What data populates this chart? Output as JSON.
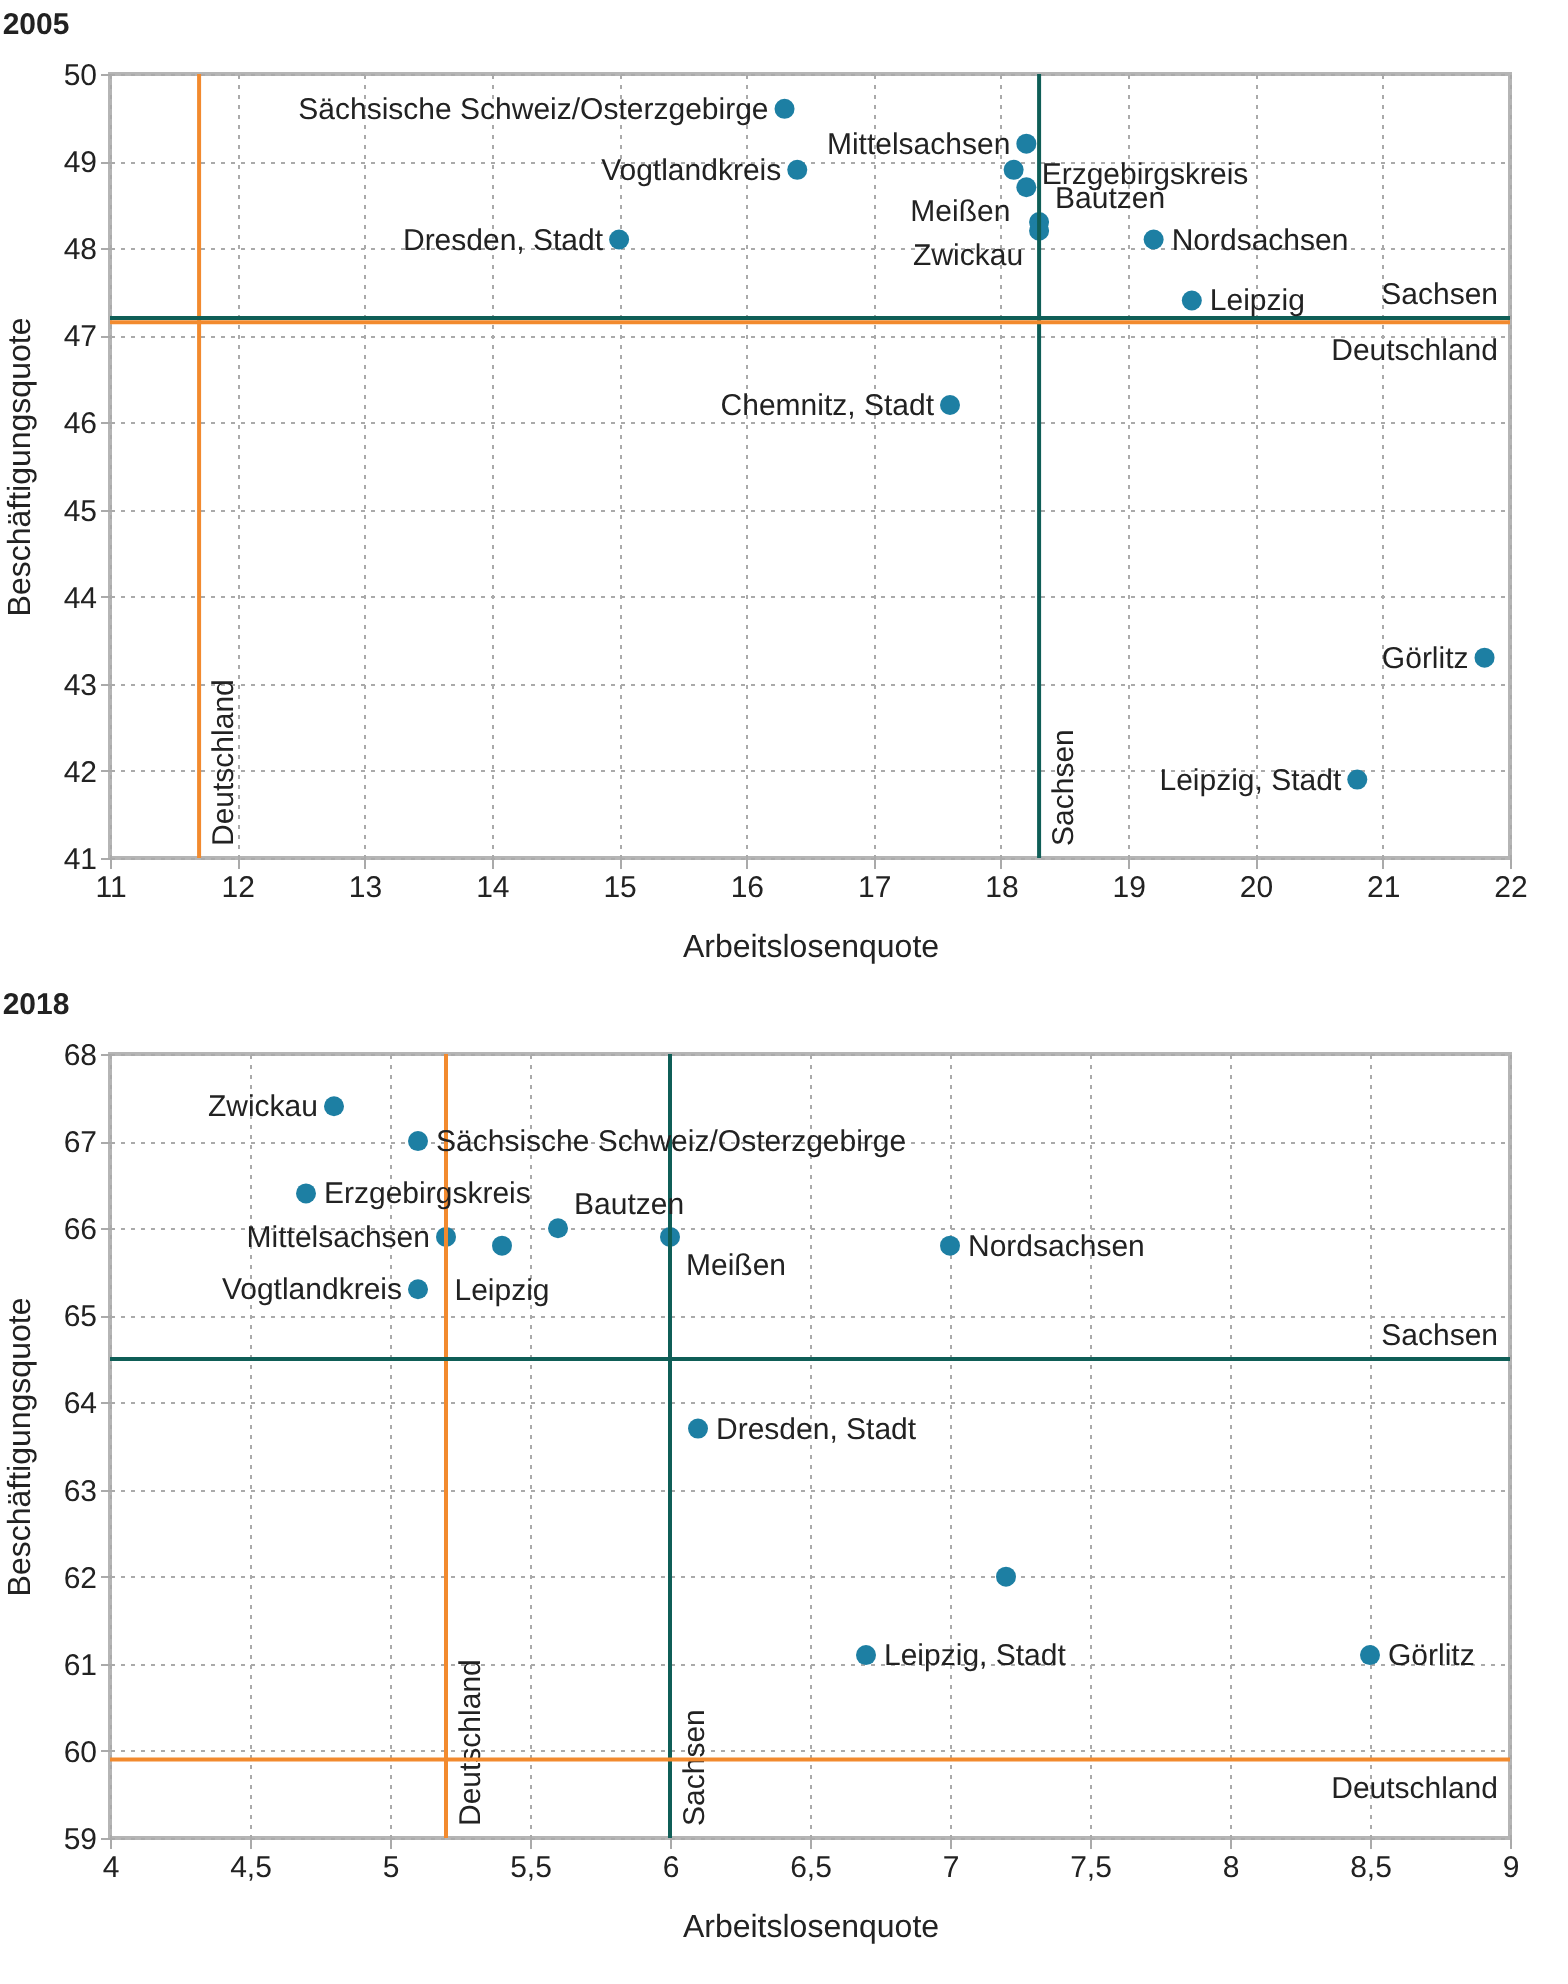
{
  "chart_data": [
    {
      "type": "scatter",
      "title": "2005",
      "xlabel": "Arbeitslosenquote",
      "ylabel": "Beschäftigungsquote",
      "grid": true,
      "marker": "circle",
      "xlim": [
        11,
        22
      ],
      "xticks": [
        11,
        12,
        13,
        14,
        15,
        16,
        17,
        18,
        19,
        20,
        21,
        22
      ],
      "ylim": [
        41,
        50
      ],
      "yticks": [
        41,
        42,
        43,
        44,
        45,
        46,
        47,
        48,
        49,
        50
      ],
      "series": [
        {
          "color": "#1d7fa3",
          "x": [
            16.3,
            18.2,
            16.4,
            18.1,
            18.2,
            18.3,
            18.3,
            15,
            19.2,
            19.5,
            17.6,
            21.8,
            20.8
          ],
          "values": [
            49.6,
            49.2,
            48.9,
            48.9,
            48.7,
            48.3,
            48.2,
            48.1,
            48.1,
            47.4,
            46.2,
            43.3,
            41.9
          ]
        }
      ],
      "annotations": [
        {
          "text": "Sächsische Schweiz/Osterzgebirge",
          "x": 16.3,
          "y": 49.6
        },
        {
          "text": "Mittelsachsen",
          "x": 18.2,
          "y": 49.2
        },
        {
          "text": "Vogtlandkreis",
          "x": 16.4,
          "y": 48.9
        },
        {
          "text": "Erzgebirgskreis",
          "x": 18.1,
          "y": 48.9
        },
        {
          "text": "Meißen",
          "x": 18.2,
          "y": 48.7
        },
        {
          "text": "Bautzen",
          "x": 18.3,
          "y": 48.3
        },
        {
          "text": "Zwickau",
          "x": 18.3,
          "y": 48.2
        },
        {
          "text": "Dresden, Stadt",
          "x": 15,
          "y": 48.1
        },
        {
          "text": "Nordsachsen",
          "x": 19.2,
          "y": 48.1
        },
        {
          "text": "Leipzig",
          "x": 19.5,
          "y": 47.4
        },
        {
          "text": "Chemnitz, Stadt",
          "x": 17.6,
          "y": 46.2
        },
        {
          "text": "Görlitz",
          "x": 21.8,
          "y": 43.3
        },
        {
          "text": "Leipzig, Stadt",
          "x": 20.8,
          "y": 41.9
        }
      ],
      "ref_lines": [
        {
          "axis": "x",
          "value": 11.7,
          "label": "Deutschland",
          "color": "#f28a2e"
        },
        {
          "axis": "x",
          "value": 18.3,
          "label": "Sachsen",
          "color": "#0f5e57"
        },
        {
          "axis": "y",
          "value": 47.2,
          "label": "Sachsen",
          "color": "#0f5e57"
        },
        {
          "axis": "y",
          "value": 47.15,
          "label": "Deutschland",
          "color": "#f28a2e"
        }
      ]
    },
    {
      "type": "scatter",
      "title": "2018",
      "xlabel": "Arbeitslosenquote",
      "ylabel": "Beschäftigungsquote",
      "grid": true,
      "marker": "circle",
      "xlim": [
        4,
        9
      ],
      "xticks": [
        4,
        {
          "value": 4.5,
          "label": "4,5"
        },
        5,
        {
          "value": 5.5,
          "label": "5,5"
        },
        6,
        {
          "value": 6.5,
          "label": "6,5"
        },
        7,
        {
          "value": 7.5,
          "label": "7,5"
        },
        8,
        {
          "value": 8.5,
          "label": "8,5"
        },
        9
      ],
      "ylim": [
        59,
        68
      ],
      "yticks": [
        59,
        60,
        61,
        62,
        63,
        64,
        65,
        66,
        67,
        68
      ],
      "series": [
        {
          "color": "#1d7fa3",
          "x": [
            4.8,
            5.1,
            4.7,
            5.2,
            5.4,
            5.6,
            6.0,
            5.1,
            7.0,
            6.1,
            6.7,
            8.5,
            7.2
          ],
          "values": [
            67.4,
            67.0,
            66.4,
            65.9,
            65.8,
            66.0,
            65.9,
            65.3,
            65.8,
            63.7,
            61.1,
            61.1,
            62.0
          ]
        }
      ],
      "annotations": [
        {
          "text": "Zwickau",
          "x": 4.8,
          "y": 67.4
        },
        {
          "text": "Sächsische Schweiz/Osterzgebirge",
          "x": 5.1,
          "y": 67.0
        },
        {
          "text": "Erzgebirgskreis",
          "x": 4.7,
          "y": 66.4
        },
        {
          "text": "Mittelsachsen",
          "x": 5.2,
          "y": 65.9
        },
        {
          "text": "Leipzig",
          "x": 5.4,
          "y": 65.8
        },
        {
          "text": "Bautzen",
          "x": 5.6,
          "y": 66.0
        },
        {
          "text": "Meißen",
          "x": 6.0,
          "y": 65.9
        },
        {
          "text": "Vogtlandkreis",
          "x": 5.1,
          "y": 65.3
        },
        {
          "text": "Nordsachsen",
          "x": 7.0,
          "y": 65.8
        },
        {
          "text": "Dresden, Stadt",
          "x": 6.1,
          "y": 63.7
        },
        {
          "text": "Leipzig, Stadt",
          "x": 6.7,
          "y": 61.1
        },
        {
          "text": "Görlitz",
          "x": 8.5,
          "y": 61.1
        }
      ],
      "ref_lines": [
        {
          "axis": "x",
          "value": 5.2,
          "label": "Deutschland",
          "color": "#f28a2e"
        },
        {
          "axis": "x",
          "value": 6.0,
          "label": "Sachsen",
          "color": "#0f5e57"
        },
        {
          "axis": "y",
          "value": 64.5,
          "label": "Sachsen",
          "color": "#0f5e57"
        },
        {
          "axis": "y",
          "value": 59.9,
          "label": "Deutschland",
          "color": "#f28a2e"
        }
      ]
    }
  ]
}
